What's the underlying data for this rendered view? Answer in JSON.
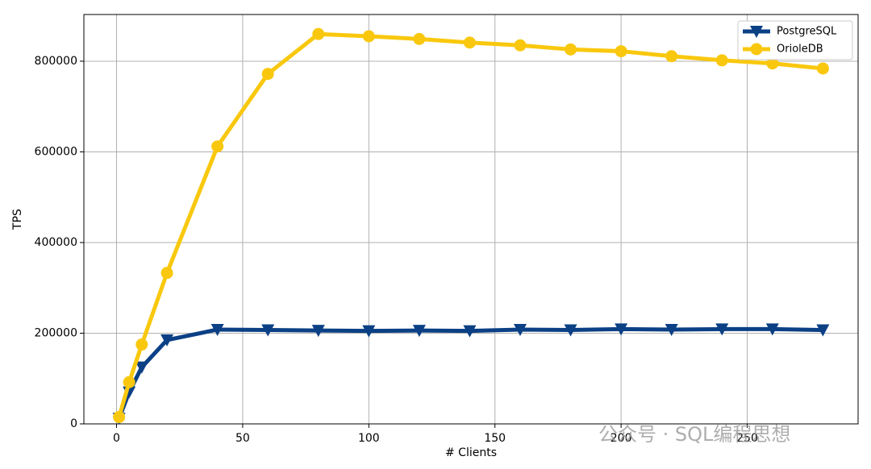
{
  "chart_data": {
    "type": "line",
    "xlabel": "# Clients",
    "ylabel": "TPS",
    "x": [
      1,
      5,
      10,
      20,
      40,
      60,
      80,
      100,
      120,
      140,
      160,
      180,
      200,
      220,
      240,
      260,
      280
    ],
    "series": [
      {
        "name": "PostgreSQL",
        "color": "#0b4085",
        "marker": "triangle-down",
        "values": [
          12000,
          70000,
          125000,
          185000,
          208000,
          207000,
          206000,
          205000,
          206000,
          205000,
          208000,
          207000,
          209000,
          208000,
          209000,
          209000,
          207000
        ]
      },
      {
        "name": "OrioleDB",
        "color": "#f9c80e",
        "marker": "circle",
        "values": [
          15000,
          92000,
          175000,
          333000,
          612000,
          772000,
          860000,
          855000,
          849000,
          841000,
          835000,
          826000,
          822000,
          811000,
          802000,
          795000,
          784000
        ]
      }
    ],
    "xlim": [
      -12.95,
      293.95
    ],
    "xticks": [
      0,
      50,
      100,
      150,
      200,
      250
    ],
    "ylim": [
      0,
      903000
    ],
    "yticks": [
      0,
      200000,
      400000,
      600000,
      800000
    ],
    "grid": true,
    "legend": "upper-right",
    "watermark": "公众号 · SQL编程思想"
  }
}
